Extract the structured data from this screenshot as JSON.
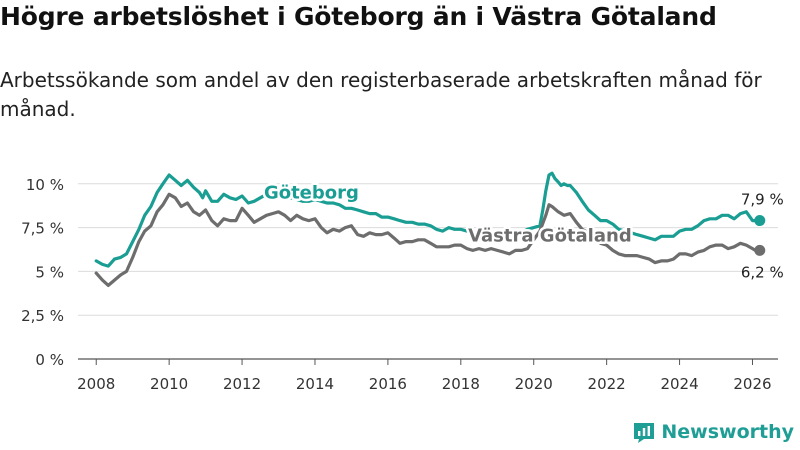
{
  "title": "Högre arbetslöshet i Göteborg än i Västra Götaland",
  "subtitle": "Arbetssökande som andel av den registerbaserade arbetskraften månad för månad.",
  "brand": {
    "name": "Newsworthy"
  },
  "chart_data": {
    "type": "line",
    "title": "Högre arbetslöshet i Göteborg än i Västra Götaland",
    "subtitle": "Arbetssökande som andel av den registerbaserade arbetskraften månad för månad.",
    "xlabel": "",
    "ylabel": "",
    "xlim": [
      2007.5,
      2026.7
    ],
    "ylim": [
      0,
      10.5
    ],
    "grid": true,
    "x_ticks": [
      2008,
      2010,
      2012,
      2014,
      2016,
      2018,
      2020,
      2022,
      2024,
      2026
    ],
    "x_tick_labels": [
      "2008",
      "2010",
      "2012",
      "2014",
      "2016",
      "2018",
      "2020",
      "2022",
      "2024",
      "2026"
    ],
    "y_ticks": [
      0,
      2.5,
      5,
      7.5,
      10
    ],
    "y_tick_labels": [
      "0 %",
      "2,5 %",
      "5 %",
      "7,5 %",
      "10 %"
    ],
    "series": [
      {
        "name": "Göteborg",
        "color": "#1a9e94",
        "label_at": [
          2012.6,
          9.15
        ],
        "end_label": "7,9 %",
        "points": [
          [
            2008.0,
            5.6
          ],
          [
            2008.17,
            5.4
          ],
          [
            2008.33,
            5.3
          ],
          [
            2008.5,
            5.7
          ],
          [
            2008.67,
            5.8
          ],
          [
            2008.83,
            6.0
          ],
          [
            2009.0,
            6.7
          ],
          [
            2009.17,
            7.4
          ],
          [
            2009.33,
            8.2
          ],
          [
            2009.5,
            8.7
          ],
          [
            2009.67,
            9.5
          ],
          [
            2009.83,
            10.0
          ],
          [
            2010.0,
            10.5
          ],
          [
            2010.17,
            10.2
          ],
          [
            2010.33,
            9.9
          ],
          [
            2010.5,
            10.2
          ],
          [
            2010.67,
            9.8
          ],
          [
            2010.83,
            9.5
          ],
          [
            2010.92,
            9.2
          ],
          [
            2011.0,
            9.6
          ],
          [
            2011.17,
            9.0
          ],
          [
            2011.33,
            9.0
          ],
          [
            2011.5,
            9.4
          ],
          [
            2011.67,
            9.2
          ],
          [
            2011.83,
            9.1
          ],
          [
            2012.0,
            9.3
          ],
          [
            2012.17,
            8.9
          ],
          [
            2012.33,
            9.0
          ],
          [
            2012.5,
            9.2
          ],
          [
            2012.67,
            9.4
          ],
          [
            2012.83,
            9.5
          ],
          [
            2013.0,
            9.7
          ],
          [
            2013.17,
            9.4
          ],
          [
            2013.33,
            9.2
          ],
          [
            2013.5,
            9.1
          ],
          [
            2013.67,
            9.0
          ],
          [
            2013.83,
            9.0
          ],
          [
            2014.0,
            9.1
          ],
          [
            2014.17,
            9.0
          ],
          [
            2014.33,
            8.9
          ],
          [
            2014.5,
            8.9
          ],
          [
            2014.67,
            8.8
          ],
          [
            2014.83,
            8.6
          ],
          [
            2015.0,
            8.6
          ],
          [
            2015.17,
            8.5
          ],
          [
            2015.33,
            8.4
          ],
          [
            2015.5,
            8.3
          ],
          [
            2015.67,
            8.3
          ],
          [
            2015.83,
            8.1
          ],
          [
            2016.0,
            8.1
          ],
          [
            2016.17,
            8.0
          ],
          [
            2016.33,
            7.9
          ],
          [
            2016.5,
            7.8
          ],
          [
            2016.67,
            7.8
          ],
          [
            2016.83,
            7.7
          ],
          [
            2017.0,
            7.7
          ],
          [
            2017.17,
            7.6
          ],
          [
            2017.33,
            7.4
          ],
          [
            2017.5,
            7.3
          ],
          [
            2017.67,
            7.5
          ],
          [
            2017.83,
            7.4
          ],
          [
            2018.0,
            7.4
          ],
          [
            2018.17,
            7.3
          ],
          [
            2018.33,
            7.2
          ],
          [
            2018.5,
            7.1
          ],
          [
            2018.67,
            7.1
          ],
          [
            2018.83,
            7.2
          ],
          [
            2019.0,
            7.2
          ],
          [
            2019.17,
            7.3
          ],
          [
            2019.33,
            7.2
          ],
          [
            2019.5,
            7.3
          ],
          [
            2019.67,
            7.2
          ],
          [
            2019.83,
            7.4
          ],
          [
            2020.0,
            7.5
          ],
          [
            2020.17,
            7.6
          ],
          [
            2020.25,
            8.5
          ],
          [
            2020.33,
            9.6
          ],
          [
            2020.42,
            10.5
          ],
          [
            2020.5,
            10.6
          ],
          [
            2020.58,
            10.3
          ],
          [
            2020.67,
            10.1
          ],
          [
            2020.75,
            9.9
          ],
          [
            2020.83,
            10.0
          ],
          [
            2020.92,
            9.9
          ],
          [
            2021.0,
            9.9
          ],
          [
            2021.17,
            9.5
          ],
          [
            2021.33,
            9.0
          ],
          [
            2021.5,
            8.5
          ],
          [
            2021.67,
            8.2
          ],
          [
            2021.83,
            7.9
          ],
          [
            2022.0,
            7.9
          ],
          [
            2022.17,
            7.7
          ],
          [
            2022.33,
            7.4
          ],
          [
            2022.5,
            7.3
          ],
          [
            2022.67,
            7.2
          ],
          [
            2022.83,
            7.1
          ],
          [
            2023.0,
            7.0
          ],
          [
            2023.17,
            6.9
          ],
          [
            2023.33,
            6.8
          ],
          [
            2023.5,
            7.0
          ],
          [
            2023.67,
            7.0
          ],
          [
            2023.83,
            7.0
          ],
          [
            2024.0,
            7.3
          ],
          [
            2024.17,
            7.4
          ],
          [
            2024.33,
            7.4
          ],
          [
            2024.5,
            7.6
          ],
          [
            2024.67,
            7.9
          ],
          [
            2024.83,
            8.0
          ],
          [
            2025.0,
            8.0
          ],
          [
            2025.17,
            8.2
          ],
          [
            2025.33,
            8.2
          ],
          [
            2025.5,
            8.0
          ],
          [
            2025.67,
            8.3
          ],
          [
            2025.83,
            8.4
          ],
          [
            2026.0,
            7.9
          ],
          [
            2026.08,
            7.9
          ],
          [
            2026.2,
            7.9
          ]
        ]
      },
      {
        "name": "Västra Götaland",
        "color": "#6d6d6d",
        "label_at": [
          2018.2,
          6.7
        ],
        "end_label": "6,2 %",
        "points": [
          [
            2008.0,
            4.9
          ],
          [
            2008.17,
            4.5
          ],
          [
            2008.33,
            4.2
          ],
          [
            2008.5,
            4.5
          ],
          [
            2008.67,
            4.8
          ],
          [
            2008.83,
            5.0
          ],
          [
            2009.0,
            5.8
          ],
          [
            2009.17,
            6.7
          ],
          [
            2009.33,
            7.3
          ],
          [
            2009.5,
            7.6
          ],
          [
            2009.67,
            8.4
          ],
          [
            2009.83,
            8.8
          ],
          [
            2010.0,
            9.4
          ],
          [
            2010.17,
            9.2
          ],
          [
            2010.33,
            8.7
          ],
          [
            2010.5,
            8.9
          ],
          [
            2010.67,
            8.4
          ],
          [
            2010.83,
            8.2
          ],
          [
            2011.0,
            8.5
          ],
          [
            2011.17,
            7.9
          ],
          [
            2011.33,
            7.6
          ],
          [
            2011.5,
            8.0
          ],
          [
            2011.67,
            7.9
          ],
          [
            2011.83,
            7.9
          ],
          [
            2012.0,
            8.6
          ],
          [
            2012.17,
            8.2
          ],
          [
            2012.33,
            7.8
          ],
          [
            2012.5,
            8.0
          ],
          [
            2012.67,
            8.2
          ],
          [
            2012.83,
            8.3
          ],
          [
            2013.0,
            8.4
          ],
          [
            2013.17,
            8.2
          ],
          [
            2013.33,
            7.9
          ],
          [
            2013.5,
            8.2
          ],
          [
            2013.67,
            8.0
          ],
          [
            2013.83,
            7.9
          ],
          [
            2014.0,
            8.0
          ],
          [
            2014.17,
            7.5
          ],
          [
            2014.33,
            7.2
          ],
          [
            2014.5,
            7.4
          ],
          [
            2014.67,
            7.3
          ],
          [
            2014.83,
            7.5
          ],
          [
            2015.0,
            7.6
          ],
          [
            2015.17,
            7.1
          ],
          [
            2015.33,
            7.0
          ],
          [
            2015.5,
            7.2
          ],
          [
            2015.67,
            7.1
          ],
          [
            2015.83,
            7.1
          ],
          [
            2016.0,
            7.2
          ],
          [
            2016.17,
            6.9
          ],
          [
            2016.33,
            6.6
          ],
          [
            2016.5,
            6.7
          ],
          [
            2016.67,
            6.7
          ],
          [
            2016.83,
            6.8
          ],
          [
            2017.0,
            6.8
          ],
          [
            2017.17,
            6.6
          ],
          [
            2017.33,
            6.4
          ],
          [
            2017.5,
            6.4
          ],
          [
            2017.67,
            6.4
          ],
          [
            2017.83,
            6.5
          ],
          [
            2018.0,
            6.5
          ],
          [
            2018.17,
            6.3
          ],
          [
            2018.33,
            6.2
          ],
          [
            2018.5,
            6.3
          ],
          [
            2018.67,
            6.2
          ],
          [
            2018.83,
            6.3
          ],
          [
            2019.0,
            6.2
          ],
          [
            2019.17,
            6.1
          ],
          [
            2019.33,
            6.0
          ],
          [
            2019.5,
            6.2
          ],
          [
            2019.67,
            6.2
          ],
          [
            2019.83,
            6.3
          ],
          [
            2020.0,
            6.8
          ],
          [
            2020.17,
            7.3
          ],
          [
            2020.33,
            8.2
          ],
          [
            2020.42,
            8.8
          ],
          [
            2020.5,
            8.7
          ],
          [
            2020.67,
            8.4
          ],
          [
            2020.83,
            8.2
          ],
          [
            2021.0,
            8.3
          ],
          [
            2021.17,
            7.8
          ],
          [
            2021.33,
            7.4
          ],
          [
            2021.5,
            7.2
          ],
          [
            2021.67,
            6.9
          ],
          [
            2021.83,
            6.6
          ],
          [
            2022.0,
            6.5
          ],
          [
            2022.17,
            6.2
          ],
          [
            2022.33,
            6.0
          ],
          [
            2022.5,
            5.9
          ],
          [
            2022.67,
            5.9
          ],
          [
            2022.83,
            5.9
          ],
          [
            2023.0,
            5.8
          ],
          [
            2023.17,
            5.7
          ],
          [
            2023.33,
            5.5
          ],
          [
            2023.5,
            5.6
          ],
          [
            2023.67,
            5.6
          ],
          [
            2023.83,
            5.7
          ],
          [
            2024.0,
            6.0
          ],
          [
            2024.17,
            6.0
          ],
          [
            2024.33,
            5.9
          ],
          [
            2024.5,
            6.1
          ],
          [
            2024.67,
            6.2
          ],
          [
            2024.83,
            6.4
          ],
          [
            2025.0,
            6.5
          ],
          [
            2025.17,
            6.5
          ],
          [
            2025.33,
            6.3
          ],
          [
            2025.5,
            6.4
          ],
          [
            2025.67,
            6.6
          ],
          [
            2025.83,
            6.5
          ],
          [
            2026.0,
            6.3
          ],
          [
            2026.08,
            6.2
          ],
          [
            2026.2,
            6.2
          ]
        ]
      }
    ]
  }
}
